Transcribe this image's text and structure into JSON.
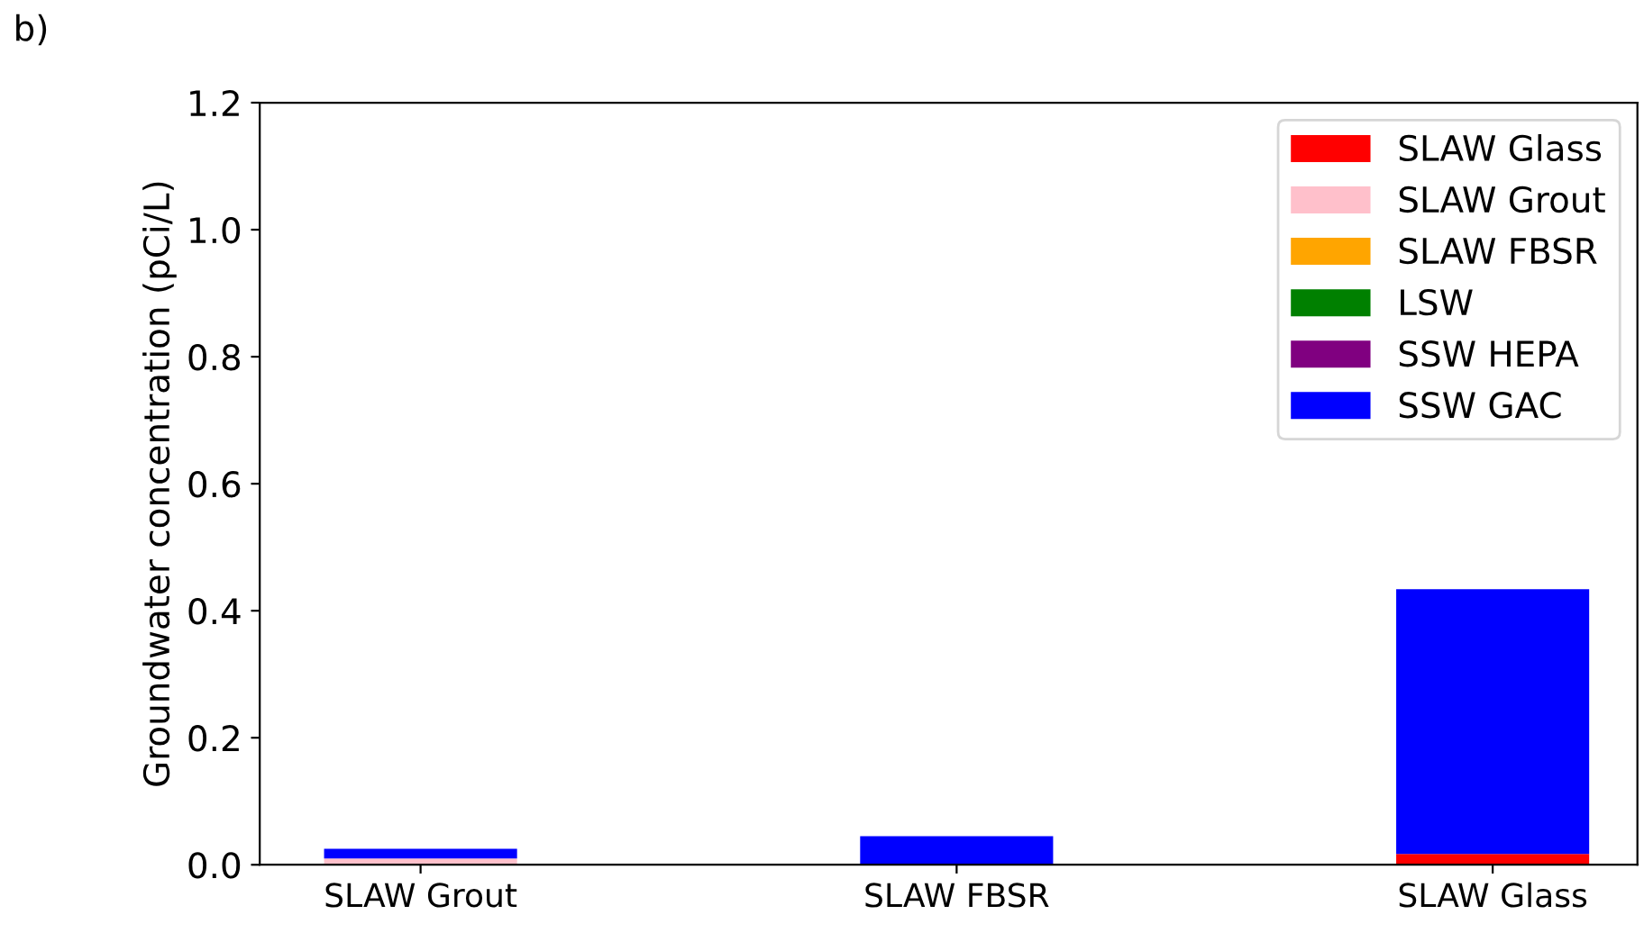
{
  "chart_data": {
    "type": "bar",
    "stacked": true,
    "ylabel": "Groundwater concentration (pCi/L)",
    "annotations": [
      "b)"
    ],
    "categories": [
      "SLAW Grout",
      "SLAW FBSR",
      "SLAW Glass"
    ],
    "series": [
      {
        "name": "SLAW Glass",
        "color": "#ff0000",
        "values": [
          0,
          0,
          0.017
        ]
      },
      {
        "name": "SLAW Grout",
        "color": "#ffc0cb",
        "values": [
          0.01,
          0,
          0
        ]
      },
      {
        "name": "SLAW FBSR",
        "color": "#ffa500",
        "values": [
          0,
          0,
          0
        ]
      },
      {
        "name": "LSW",
        "color": "#008000",
        "values": [
          0,
          0,
          0
        ]
      },
      {
        "name": "SSW HEPA",
        "color": "#800080",
        "values": [
          0,
          0,
          0
        ]
      },
      {
        "name": "SSW GAC",
        "color": "#0000ff",
        "values": [
          0.015,
          0.045,
          0.417
        ]
      }
    ],
    "ylim": [
      0,
      1.2
    ],
    "yticks": [
      {
        "value": 0,
        "label": "0.0"
      },
      0.2,
      0.4,
      0.6,
      0.8,
      {
        "value": 1,
        "label": "1.0"
      },
      1.2
    ],
    "legend": "top right",
    "grid": false
  }
}
